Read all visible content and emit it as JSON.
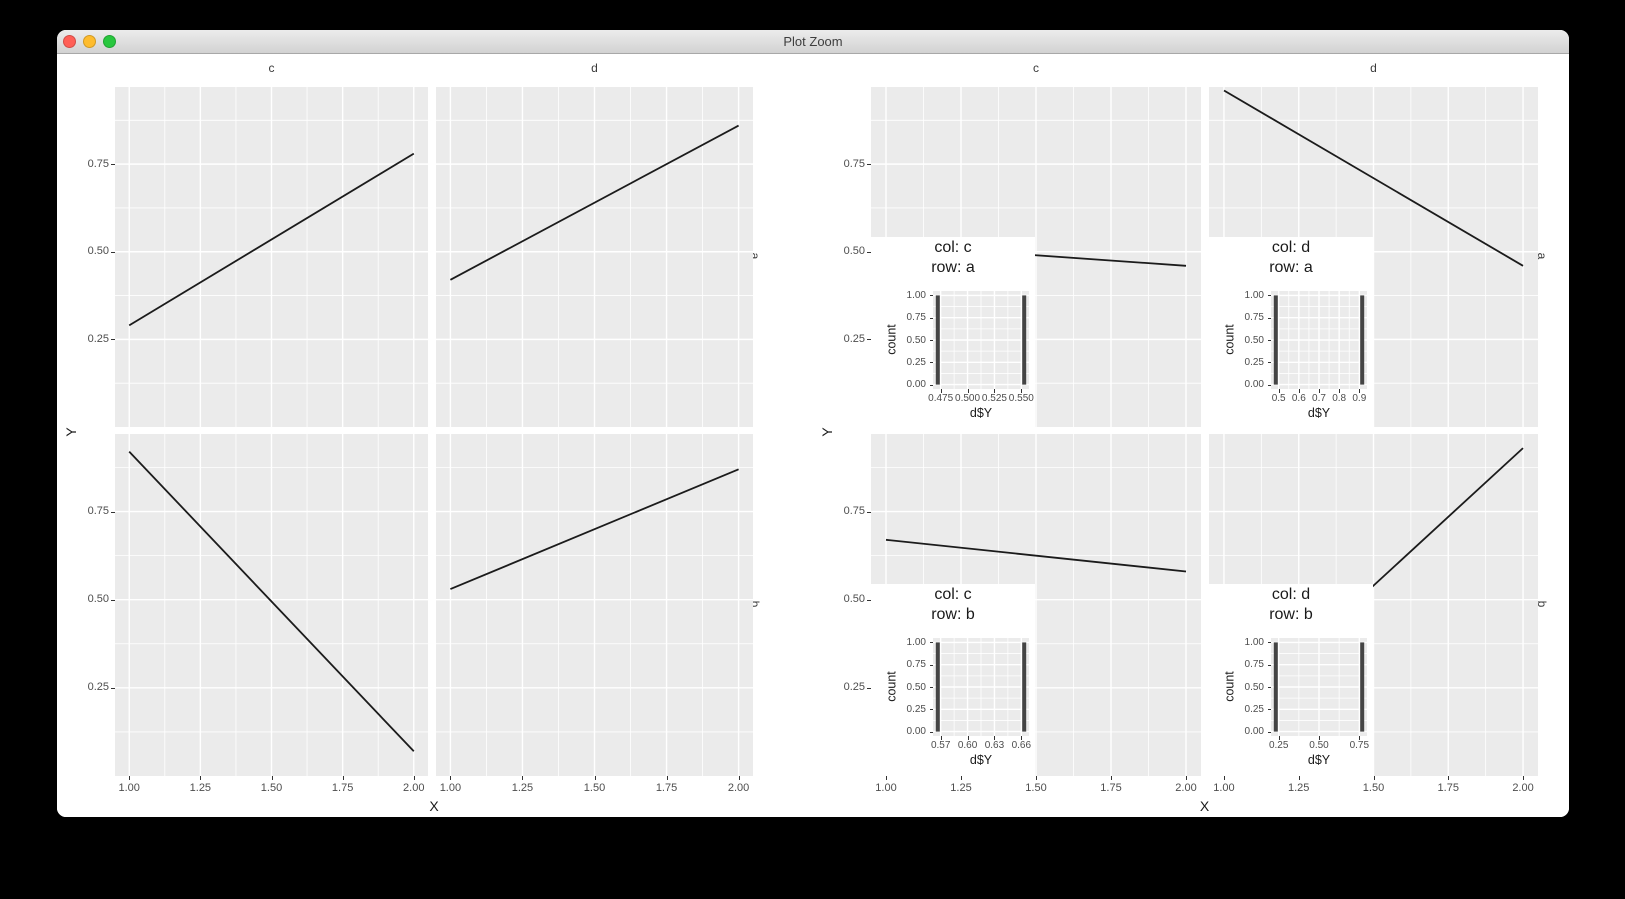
{
  "window": {
    "title": "Plot Zoom"
  },
  "colors": {
    "close_red": "#ff5f57",
    "minimize_yellow": "#febc2e",
    "maximize_green": "#29c73f",
    "panel_bg": "#ebebeb",
    "gridline": "#ffffff",
    "line": "#1b1b1b",
    "hist_bar": "#454545",
    "axis_text": "#4d4d4d",
    "title_text": "#1a1a1a",
    "strip_text": "#3a3a3a",
    "tick_mark": "#333333",
    "plot_bg": "#ffffff"
  },
  "chart_data": [
    {
      "type": "line",
      "facet": {
        "col_labels": [
          "c",
          "d"
        ],
        "row_labels": [
          "a",
          "b"
        ]
      },
      "xlabel": "X",
      "ylabel": "Y",
      "xlim": [
        0.95,
        2.05
      ],
      "ylim": [
        0.0,
        0.97
      ],
      "x_ticks": [
        "1.00",
        "1.25",
        "1.50",
        "1.75",
        "2.00"
      ],
      "x_tick_values": [
        1.0,
        1.25,
        1.5,
        1.75,
        2.0
      ],
      "y_ticks": [
        "0.75",
        "0.50",
        "0.25"
      ],
      "y_tick_values": [
        0.75,
        0.5,
        0.25
      ],
      "grid": "on",
      "panels": [
        {
          "col": "c",
          "row": "a",
          "line": {
            "x": [
              1.0,
              2.0
            ],
            "y": [
              0.29,
              0.78
            ]
          }
        },
        {
          "col": "d",
          "row": "a",
          "line": {
            "x": [
              1.0,
              2.0
            ],
            "y": [
              0.42,
              0.86
            ]
          }
        },
        {
          "col": "c",
          "row": "b",
          "line": {
            "x": [
              1.0,
              2.0
            ],
            "y": [
              0.92,
              0.07
            ]
          }
        },
        {
          "col": "d",
          "row": "b",
          "line": {
            "x": [
              1.0,
              2.0
            ],
            "y": [
              0.53,
              0.87
            ]
          }
        }
      ]
    },
    {
      "type": "line",
      "facet": {
        "col_labels": [
          "c",
          "d"
        ],
        "row_labels": [
          "a",
          "b"
        ]
      },
      "xlabel": "X",
      "ylabel": "Y",
      "xlim": [
        0.95,
        2.05
      ],
      "ylim": [
        0.0,
        0.97
      ],
      "x_ticks": [
        "1.00",
        "1.25",
        "1.50",
        "1.75",
        "2.00"
      ],
      "x_tick_values": [
        1.0,
        1.25,
        1.5,
        1.75,
        2.0
      ],
      "y_ticks": [
        "0.75",
        "0.50",
        "0.25"
      ],
      "y_tick_values": [
        0.75,
        0.5,
        0.25
      ],
      "grid": "on",
      "panels": [
        {
          "col": "c",
          "row": "a",
          "line": {
            "x": [
              1.0,
              2.0
            ],
            "y": [
              0.52,
              0.46
            ]
          },
          "inset": {
            "type": "histogram",
            "title_lines": [
              "col: c",
              "row: a"
            ],
            "xlabel": "d$Y",
            "ylabel": "count",
            "x_ticks": [
              "0.475",
              "0.500",
              "0.525",
              "0.550"
            ],
            "y_ticks": [
              "1.00",
              "0.75",
              "0.50",
              "0.25",
              "0.00"
            ],
            "y_tick_values": [
              1.0,
              0.75,
              0.5,
              0.25,
              0.0
            ],
            "bars": [
              {
                "x_frac": 0.05,
                "count": 1.0
              },
              {
                "x_frac": 0.95,
                "count": 1.0
              }
            ]
          }
        },
        {
          "col": "d",
          "row": "a",
          "line": {
            "x": [
              1.0,
              2.0
            ],
            "y": [
              0.96,
              0.46
            ]
          },
          "inset": {
            "type": "histogram",
            "title_lines": [
              "col: d",
              "row: a"
            ],
            "xlabel": "d$Y",
            "ylabel": "count",
            "x_ticks": [
              "0.5",
              "0.6",
              "0.7",
              "0.8",
              "0.9"
            ],
            "y_ticks": [
              "1.00",
              "0.75",
              "0.50",
              "0.25",
              "0.00"
            ],
            "y_tick_values": [
              1.0,
              0.75,
              0.5,
              0.25,
              0.0
            ],
            "bars": [
              {
                "x_frac": 0.05,
                "count": 1.0
              },
              {
                "x_frac": 0.95,
                "count": 1.0
              }
            ]
          }
        },
        {
          "col": "c",
          "row": "b",
          "line": {
            "x": [
              1.0,
              2.0
            ],
            "y": [
              0.67,
              0.58
            ]
          },
          "inset": {
            "type": "histogram",
            "title_lines": [
              "col: c",
              "row: b"
            ],
            "xlabel": "d$Y",
            "ylabel": "count",
            "x_ticks": [
              "0.57",
              "0.60",
              "0.63",
              "0.66"
            ],
            "y_ticks": [
              "1.00",
              "0.75",
              "0.50",
              "0.25",
              "0.00"
            ],
            "y_tick_values": [
              1.0,
              0.75,
              0.5,
              0.25,
              0.0
            ],
            "bars": [
              {
                "x_frac": 0.05,
                "count": 1.0
              },
              {
                "x_frac": 0.95,
                "count": 1.0
              }
            ]
          }
        },
        {
          "col": "d",
          "row": "b",
          "line": {
            "x": [
              1.0,
              2.0
            ],
            "y": [
              0.15,
              0.93
            ]
          },
          "inset": {
            "type": "histogram",
            "title_lines": [
              "col: d",
              "row: b"
            ],
            "xlabel": "d$Y",
            "ylabel": "count",
            "x_ticks": [
              "0.25",
              "0.50",
              "0.75"
            ],
            "y_ticks": [
              "1.00",
              "0.75",
              "0.50",
              "0.25",
              "0.00"
            ],
            "y_tick_values": [
              1.0,
              0.75,
              0.5,
              0.25,
              0.0
            ],
            "bars": [
              {
                "x_frac": 0.05,
                "count": 1.0
              },
              {
                "x_frac": 0.95,
                "count": 1.0
              }
            ]
          }
        }
      ]
    }
  ]
}
